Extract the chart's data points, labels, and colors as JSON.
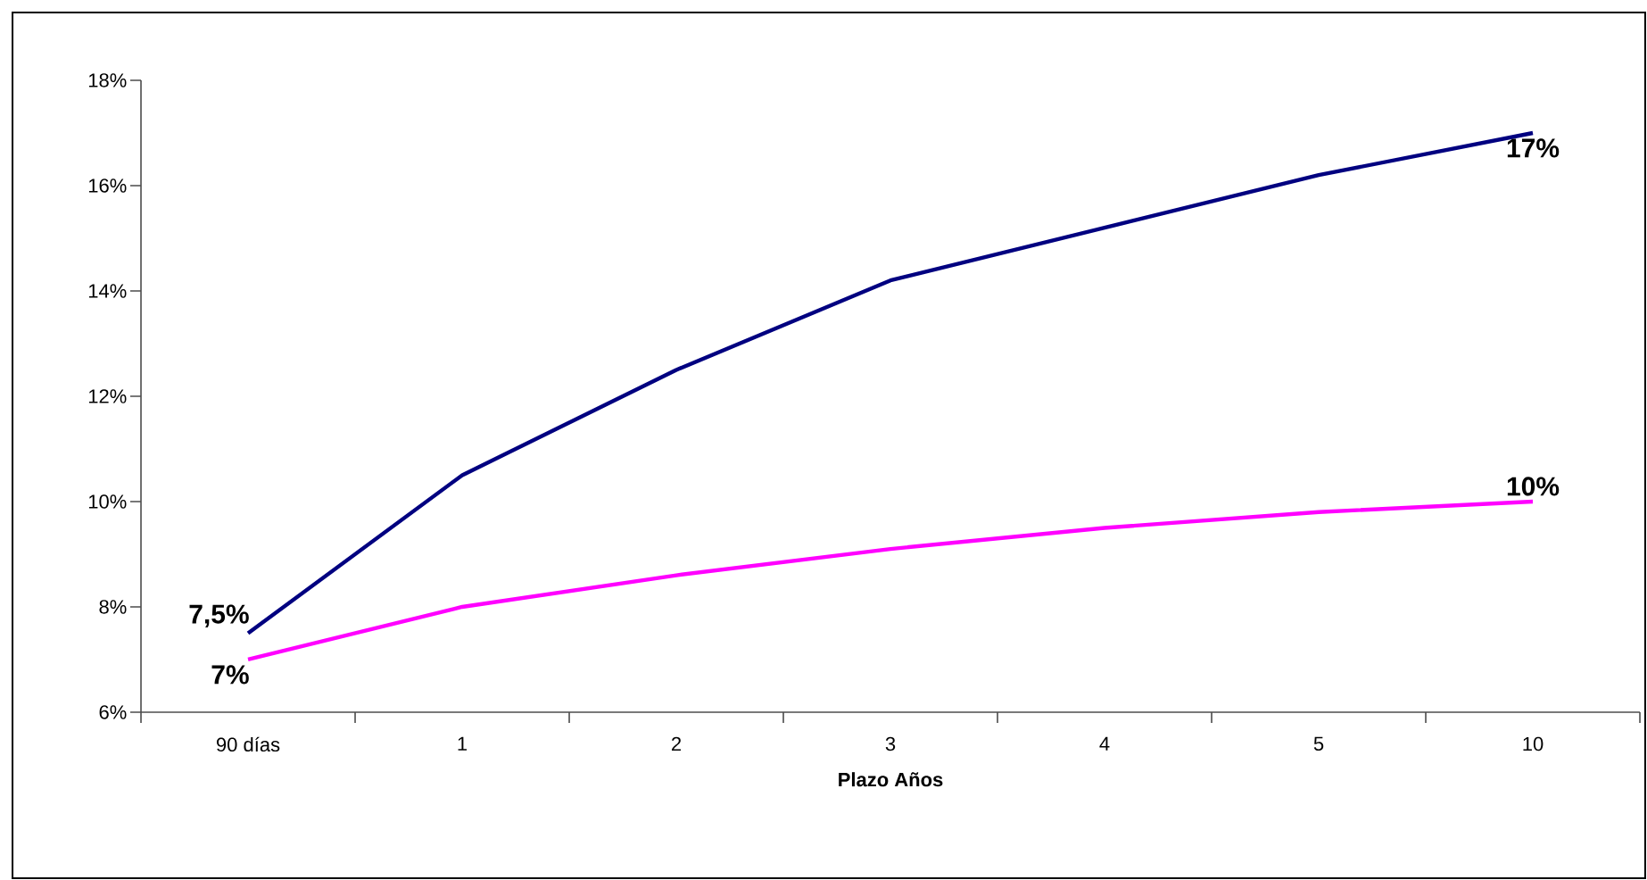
{
  "chart_data": {
    "type": "line",
    "xlabel": "Plazo Años",
    "categories": [
      "90 días",
      "1",
      "2",
      "3",
      "4",
      "5",
      "10"
    ],
    "series": [
      {
        "color": "#000080",
        "values": [
          7.5,
          10.5,
          12.5,
          14.2,
          15.2,
          16.2,
          17
        ]
      },
      {
        "color": "#ff00ff",
        "values": [
          7,
          8,
          8.6,
          9.1,
          9.5,
          9.8,
          10
        ]
      }
    ],
    "ylim": [
      6,
      18
    ],
    "yticks": [
      {
        "value": 6,
        "label": "6%"
      },
      {
        "value": 8,
        "label": "8%"
      },
      {
        "value": 10,
        "label": "10%"
      },
      {
        "value": 12,
        "label": "12%"
      },
      {
        "value": 14,
        "label": "14%"
      },
      {
        "value": 16,
        "label": "16%"
      },
      {
        "value": 18,
        "label": "18%"
      }
    ],
    "annotations": [
      {
        "text": "7,5%",
        "x": "90 días",
        "y": 7.5
      },
      {
        "text": "7%",
        "x": "90 días",
        "y": 7
      },
      {
        "text": "17%",
        "x": "10",
        "y": 17
      },
      {
        "text": "10%",
        "x": "10",
        "y": 10
      }
    ],
    "grid": false,
    "legend": false,
    "marker": "none",
    "line_style": "solid"
  }
}
